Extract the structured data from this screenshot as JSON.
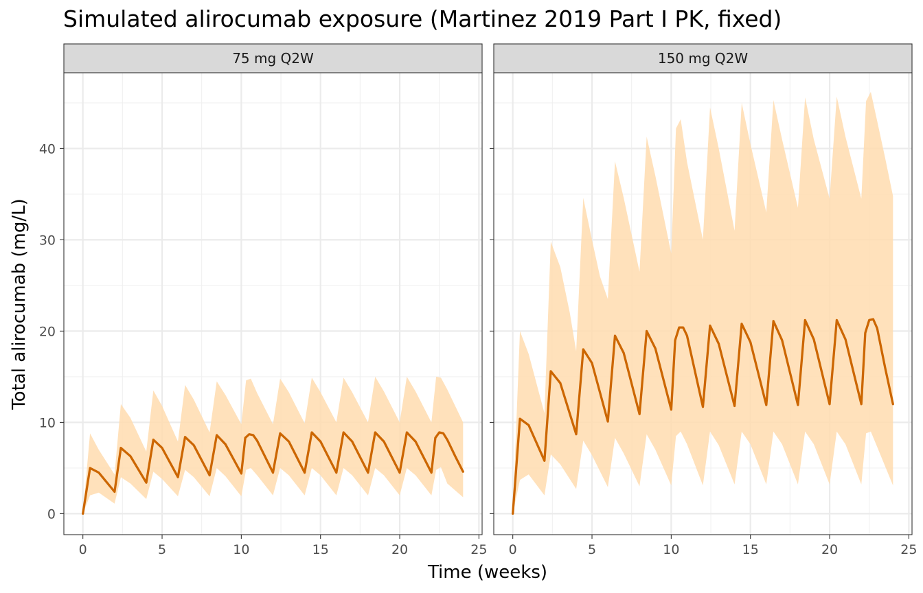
{
  "chart_data": {
    "type": "line",
    "title": "Simulated alirocumab exposure (Martinez 2019 Part I PK, fixed)",
    "xlabel": "Time (weeks)",
    "ylabel": "Total alirocumab (mg/L)",
    "xlim": [
      -1.2,
      25.2
    ],
    "ylim": [
      -2.3,
      48.3
    ],
    "x_ticks": [
      0,
      5,
      10,
      15,
      20,
      25
    ],
    "y_ticks": [
      0,
      10,
      20,
      30,
      40
    ],
    "grid": true,
    "colors": {
      "line": "#cc6600",
      "band": "#ffdcaf",
      "strip": "#d9d9d9"
    },
    "panels": [
      {
        "strip_label": "75 mg Q2W",
        "series": [
          {
            "role": "median",
            "x": [
              0,
              0.45,
              1,
              2,
              2.4,
              3,
              4,
              4.45,
              5,
              6,
              6.45,
              7,
              8,
              8.45,
              9,
              10,
              10.25,
              10.5,
              10.75,
              11,
              12,
              12.45,
              13,
              14,
              14.45,
              15,
              16,
              16.45,
              17,
              18,
              18.45,
              19,
              20,
              20.45,
              21,
              22,
              22.25,
              22.5,
              22.75,
              23,
              23.5,
              24
            ],
            "y": [
              0,
              5.0,
              4.5,
              2.4,
              7.2,
              6.3,
              3.4,
              8.1,
              7.2,
              4.0,
              8.4,
              7.5,
              4.2,
              8.6,
              7.6,
              4.4,
              8.3,
              8.7,
              8.6,
              8.0,
              4.5,
              8.8,
              7.9,
              4.5,
              8.9,
              7.9,
              4.5,
              8.9,
              7.9,
              4.5,
              8.9,
              7.9,
              4.5,
              8.9,
              7.9,
              4.5,
              8.3,
              8.9,
              8.8,
              8.1,
              6.3,
              4.6
            ]
          },
          {
            "role": "upper",
            "x": [
              0,
              0.45,
              1,
              2,
              2.4,
              3,
              4,
              4.45,
              5,
              6,
              6.45,
              7,
              8,
              8.45,
              9,
              10,
              10.3,
              10.6,
              11,
              12,
              12.45,
              13,
              14,
              14.45,
              15,
              16,
              16.45,
              17,
              18,
              18.45,
              19,
              20,
              20.45,
              21,
              22,
              22.3,
              22.6,
              23,
              24
            ],
            "y": [
              0,
              8.8,
              7.0,
              4.3,
              12.0,
              10.5,
              6.8,
              13.5,
              11.8,
              7.9,
              14.1,
              12.5,
              8.9,
              14.5,
              13.0,
              9.8,
              14.6,
              14.8,
              13.2,
              9.8,
              14.8,
              13.3,
              9.9,
              14.9,
              13.3,
              10.0,
              14.9,
              13.3,
              10.0,
              15.0,
              13.4,
              10.0,
              15.0,
              13.4,
              10.0,
              15.0,
              14.9,
              13.6,
              10.0
            ]
          },
          {
            "role": "lower",
            "x": [
              0,
              0.45,
              1,
              2,
              2.4,
              3,
              4,
              4.45,
              5,
              6,
              6.45,
              7,
              8,
              8.45,
              9,
              10,
              10.3,
              10.6,
              11,
              12,
              12.45,
              13,
              14,
              14.45,
              15,
              16,
              16.45,
              17,
              18,
              18.45,
              19,
              20,
              20.45,
              21,
              22,
              22.3,
              22.6,
              23,
              24
            ],
            "y": [
              0,
              2.0,
              2.3,
              1.1,
              4.0,
              3.3,
              1.6,
              4.6,
              3.8,
              1.9,
              4.8,
              4.0,
              1.9,
              5.0,
              4.1,
              1.9,
              4.8,
              5.0,
              4.2,
              2.0,
              5.0,
              4.2,
              2.0,
              5.0,
              4.2,
              2.0,
              5.0,
              4.2,
              2.0,
              5.0,
              4.2,
              2.0,
              5.0,
              4.2,
              2.0,
              4.8,
              5.1,
              3.3,
              1.8
            ]
          }
        ]
      },
      {
        "strip_label": "150 mg Q2W",
        "series": [
          {
            "role": "median",
            "x": [
              0,
              0.45,
              1,
              2,
              2.4,
              3,
              4,
              4.45,
              5,
              6,
              6.45,
              7,
              8,
              8.45,
              9,
              10,
              10.25,
              10.5,
              10.75,
              11,
              12,
              12.45,
              13,
              14,
              14.45,
              15,
              16,
              16.45,
              17,
              18,
              18.45,
              19,
              20,
              20.45,
              21,
              22,
              22.25,
              22.5,
              22.75,
              23,
              23.5,
              24
            ],
            "y": [
              0,
              10.4,
              9.7,
              5.8,
              15.6,
              14.3,
              8.7,
              18.0,
              16.5,
              10.1,
              19.5,
              17.6,
              10.9,
              20.0,
              18.1,
              11.4,
              19.0,
              20.4,
              20.4,
              19.5,
              11.7,
              20.6,
              18.6,
              11.8,
              20.8,
              18.8,
              11.9,
              21.1,
              19.0,
              11.9,
              21.2,
              19.1,
              12.0,
              21.2,
              19.1,
              12.0,
              19.8,
              21.2,
              21.3,
              20.3,
              16.0,
              12.0
            ]
          },
          {
            "role": "upper",
            "x": [
              0,
              0.45,
              1,
              2,
              2.4,
              3,
              3.6,
              4,
              4.45,
              5,
              5.5,
              6,
              6.45,
              7,
              8,
              8.45,
              9,
              10,
              10.3,
              10.6,
              11,
              12,
              12.45,
              13,
              14,
              14.45,
              15,
              16,
              16.45,
              17,
              18,
              18.45,
              19,
              20,
              20.45,
              21,
              22,
              22.3,
              22.6,
              23,
              23.5,
              24
            ],
            "y": [
              0,
              20.0,
              17.5,
              11.0,
              29.8,
              27.0,
              22.0,
              17.8,
              34.6,
              30.0,
              26.0,
              23.5,
              38.6,
              34.6,
              26.5,
              41.3,
              37.0,
              28.5,
              42.2,
              43.2,
              38.5,
              30.0,
              44.5,
              40.0,
              31.0,
              45.0,
              40.5,
              33.0,
              45.3,
              41.0,
              33.5,
              45.6,
              41.0,
              34.5,
              45.7,
              41.3,
              34.5,
              45.2,
              46.2,
              43.0,
              39.0,
              34.8
            ]
          },
          {
            "role": "lower",
            "x": [
              0,
              0.45,
              1,
              2,
              2.4,
              3,
              4,
              4.45,
              5,
              6,
              6.45,
              7,
              8,
              8.45,
              9,
              10,
              10.3,
              10.6,
              11,
              12,
              12.45,
              13,
              14,
              14.45,
              15,
              16,
              16.45,
              17,
              18,
              18.45,
              19,
              20,
              20.45,
              21,
              22,
              22.3,
              22.6,
              23,
              24
            ],
            "y": [
              0,
              3.7,
              4.3,
              2.0,
              6.5,
              5.4,
              2.7,
              8.0,
              6.4,
              2.9,
              8.3,
              6.6,
              3.0,
              8.7,
              7.0,
              3.1,
              8.5,
              9.0,
              7.6,
              3.1,
              9.0,
              7.5,
              3.2,
              9.0,
              7.6,
              3.2,
              9.0,
              7.6,
              3.2,
              9.0,
              7.6,
              3.2,
              9.0,
              7.6,
              3.2,
              8.8,
              9.0,
              7.3,
              3.1
            ]
          }
        ]
      }
    ]
  }
}
